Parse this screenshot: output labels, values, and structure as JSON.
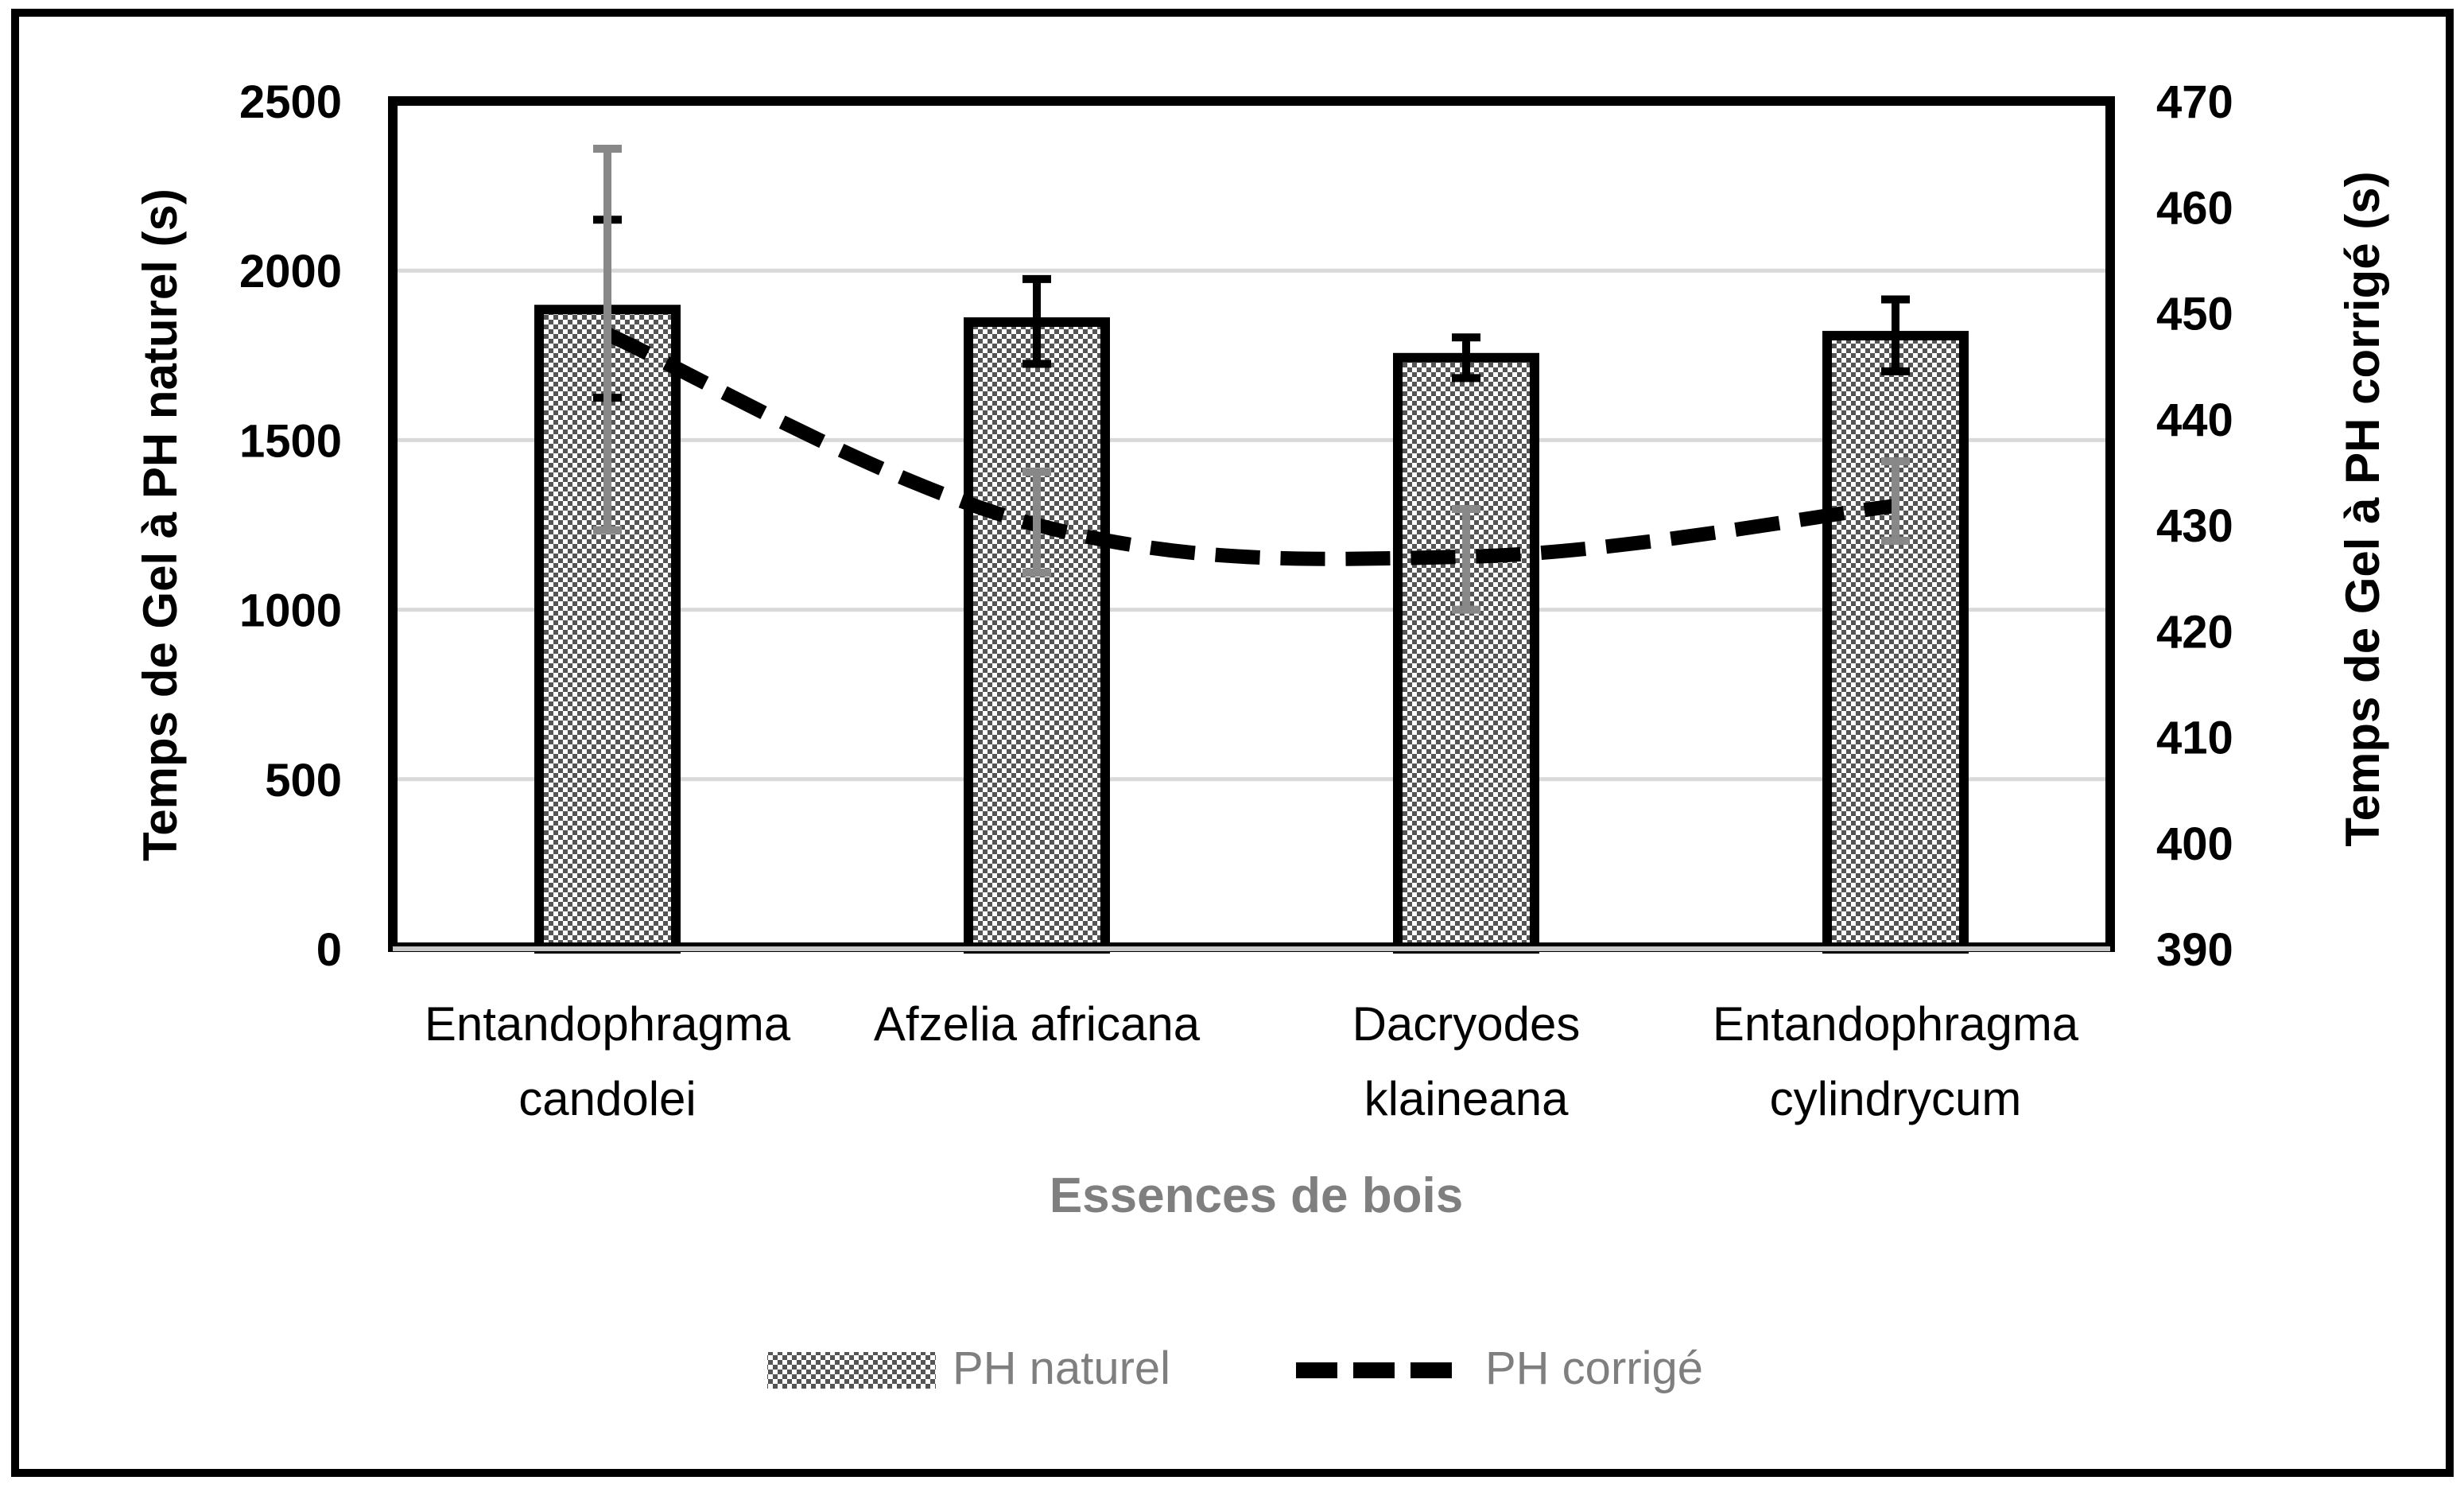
{
  "chart_data": {
    "type": "bar+line",
    "categories": [
      [
        "Entandophragma",
        "candolei"
      ],
      [
        "Afzelia africana"
      ],
      [
        "Dacryodes",
        "klaineana"
      ],
      [
        "Entandophragma",
        "cylindrycum"
      ]
    ],
    "xlabel": "Essences de bois",
    "ylabel_left": "Temps de Gel à PH naturel (s)",
    "ylabel_right": "Temps de Gel à PH corrigé (s)",
    "y_left": {
      "min": 0,
      "max": 2500,
      "step": 500,
      "ticks": [
        "0",
        "500",
        "1000",
        "1500",
        "2000",
        "2500"
      ]
    },
    "y_right": {
      "min": 390,
      "max": 470,
      "step": 10,
      "ticks": [
        "390",
        "400",
        "410",
        "420",
        "430",
        "440",
        "450",
        "460",
        "470"
      ]
    },
    "gridlines": true,
    "series": [
      {
        "name": "PH naturel",
        "type": "bar",
        "axis": "left",
        "pattern": "dotted",
        "values": [
          1885,
          1848,
          1743,
          1808
        ],
        "error_low": [
          1625,
          1725,
          1683,
          1703
        ],
        "error_high": [
          2150,
          1975,
          1803,
          1915
        ]
      },
      {
        "name": "PH corrigé",
        "type": "line",
        "axis": "right",
        "style": "dashed",
        "values": [
          448,
          430,
          427,
          431.8
        ],
        "error_low": [
          429.5,
          425.5,
          422,
          428.5
        ],
        "error_high": [
          465.5,
          435,
          431.5,
          436
        ]
      }
    ],
    "legend": {
      "position": "bottom-center",
      "items": [
        "PH naturel",
        "PH corrigé"
      ]
    },
    "colors": {
      "frame": "#000000",
      "grid": "#d9d9d9",
      "axis_label_x": "#7f7f7f",
      "legend_text": "#7f7f7f",
      "bar_error": "#000000",
      "line_error": "#888888",
      "line": "#000000"
    }
  }
}
